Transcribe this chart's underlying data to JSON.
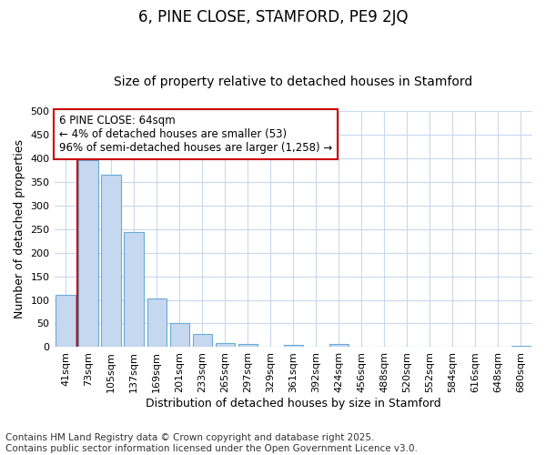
{
  "title": "6, PINE CLOSE, STAMFORD, PE9 2JQ",
  "subtitle": "Size of property relative to detached houses in Stamford",
  "xlabel": "Distribution of detached houses by size in Stamford",
  "ylabel": "Number of detached properties",
  "categories": [
    "41sqm",
    "73sqm",
    "105sqm",
    "137sqm",
    "169sqm",
    "201sqm",
    "233sqm",
    "265sqm",
    "297sqm",
    "329sqm",
    "361sqm",
    "392sqm",
    "424sqm",
    "456sqm",
    "488sqm",
    "520sqm",
    "552sqm",
    "584sqm",
    "616sqm",
    "648sqm",
    "680sqm"
  ],
  "values": [
    110,
    395,
    365,
    243,
    103,
    50,
    28,
    8,
    6,
    0,
    5,
    0,
    6,
    0,
    0,
    0,
    0,
    0,
    0,
    0,
    2
  ],
  "bar_color": "#c5d8f0",
  "bar_edge_color": "#6aaad4",
  "vline_color": "#cc0000",
  "annotation_text": "6 PINE CLOSE: 64sqm\n← 4% of detached houses are smaller (53)\n96% of semi-detached houses are larger (1,258) →",
  "annotation_box_color": "#ffffff",
  "annotation_box_edge": "#cc0000",
  "ylim": [
    0,
    500
  ],
  "yticks": [
    0,
    50,
    100,
    150,
    200,
    250,
    300,
    350,
    400,
    450,
    500
  ],
  "bg_color": "#ffffff",
  "grid_color": "#c8d8ee",
  "footer": "Contains HM Land Registry data © Crown copyright and database right 2025.\nContains public sector information licensed under the Open Government Licence v3.0.",
  "title_fontsize": 12,
  "subtitle_fontsize": 10,
  "axis_label_fontsize": 9,
  "tick_fontsize": 8,
  "annotation_fontsize": 8.5,
  "footer_fontsize": 7.5
}
